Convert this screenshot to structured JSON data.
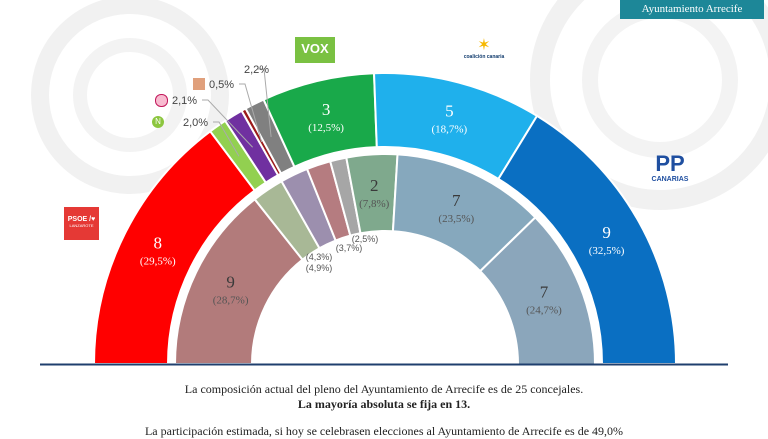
{
  "header": {
    "badge": "Ayuntamiento Arrecife"
  },
  "captions": {
    "line1": "La composición actual del pleno del Ayuntamiento de Arrecife es de 25 concejales.",
    "line2": "La mayoría absoluta se fija en 13.",
    "line3": "La participación estimada, si hoy se celebrasen elecciones al Ayuntamiento de Arrecife es de 49,0%"
  },
  "logos": {
    "vox": "VOX",
    "cc": "coalición canaria",
    "pp": "PP",
    "pp_sub": "CANARIAS",
    "psoe": "PSOE /",
    "psoe_sub": "LANZAROTE"
  },
  "chart_data": {
    "type": "hemicycle",
    "rings": [
      {
        "ring": "outer",
        "slices": [
          {
            "party": "PSOE",
            "seats": "8",
            "pct": 29.5,
            "label": "(29,5%)",
            "color": "#ff0000"
          },
          {
            "party": "NC",
            "pct": 2.0,
            "label": "2,0%",
            "color": "#92d050"
          },
          {
            "party": "Podemos",
            "pct": 2.1,
            "label": "2,1%",
            "color": "#7030a0"
          },
          {
            "party": "Other",
            "pct": 0.5,
            "label": "0,5%",
            "color": "#9b1b1b"
          },
          {
            "party": "Other",
            "pct": 2.2,
            "label": "2,2%",
            "color": "#808080"
          },
          {
            "party": "VOX",
            "seats": "3",
            "pct": 12.5,
            "label": "(12,5%)",
            "color": "#19a94a"
          },
          {
            "party": "CC",
            "seats": "5",
            "pct": 18.7,
            "label": "(18,7%)",
            "color": "#1fb0ec"
          },
          {
            "party": "PP",
            "seats": "9",
            "pct": 32.5,
            "label": "(32,5%)",
            "color": "#0a6fc2"
          }
        ]
      },
      {
        "ring": "inner",
        "slices": [
          {
            "seats": "9",
            "pct": 28.7,
            "label": "(28,7%)",
            "color": "#b27b7b"
          },
          {
            "pct": 4.9,
            "label": "(4,9%)",
            "color": "#a8b896"
          },
          {
            "pct": 4.3,
            "label": "(4,3%)",
            "color": "#9c8fae"
          },
          {
            "pct": 3.7,
            "label": "(3,7%)",
            "color": "#b57c80"
          },
          {
            "pct": 2.5,
            "label": "(2,5%)",
            "color": "#a6a6a6"
          },
          {
            "seats": "2",
            "pct": 7.8,
            "label": "(7,8%)",
            "color": "#7fa98d"
          },
          {
            "seats": "7",
            "pct": 23.5,
            "label": "(23,5%)",
            "color": "#86a8bd"
          },
          {
            "seats": "7",
            "pct": 24.7,
            "label": "(24,7%)",
            "color": "#8ba6bb"
          }
        ]
      }
    ]
  }
}
